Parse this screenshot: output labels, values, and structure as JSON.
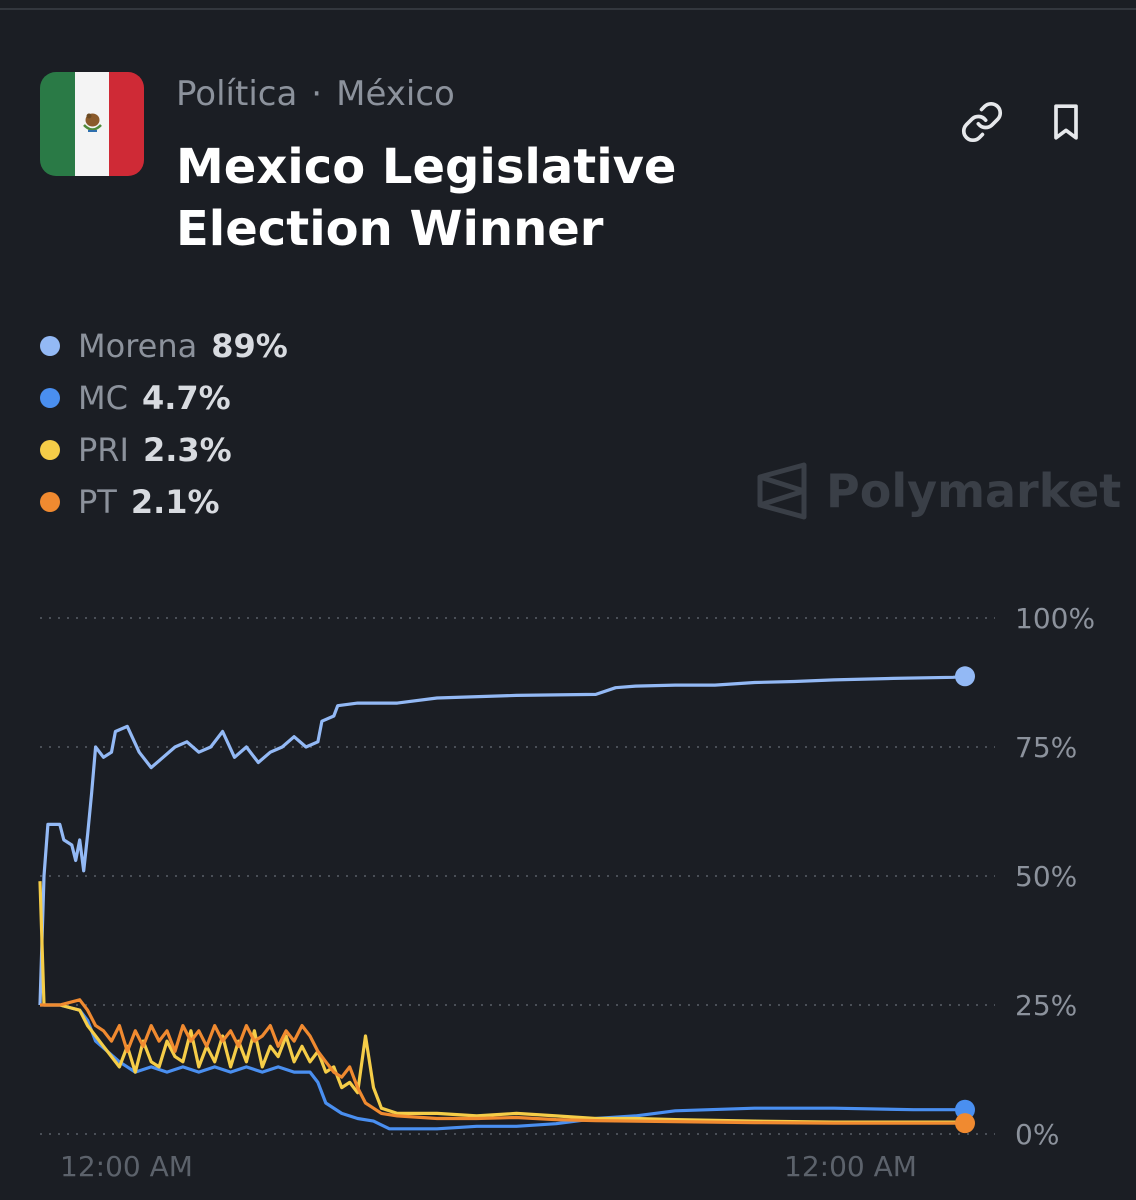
{
  "header": {
    "category": "Política",
    "region": "México",
    "title": "Mexico Legislative Election Winner",
    "link_icon": "link-icon",
    "bookmark_icon": "bookmark-icon"
  },
  "watermark": "Polymarket",
  "colors": {
    "background": "#1b1e24",
    "Morena": "#93b9f5",
    "MC": "#4a8ff0",
    "PRI": "#f5cd48",
    "PT": "#f08a30"
  },
  "legend": [
    {
      "name": "Morena",
      "value": "89%",
      "color": "#93b9f5"
    },
    {
      "name": "MC",
      "value": "4.7%",
      "color": "#4a8ff0"
    },
    {
      "name": "PRI",
      "value": "2.3%",
      "color": "#f5cd48"
    },
    {
      "name": "PT",
      "value": "2.1%",
      "color": "#f08a30"
    }
  ],
  "chart_data": {
    "type": "line",
    "ylim": [
      0,
      100
    ],
    "y_ticks": [
      "100%",
      "75%",
      "50%",
      "25%",
      "0%"
    ],
    "x_tick_labels": [
      "12:00 AM",
      "12:00 AM"
    ],
    "grid": "dotted horizontal",
    "series": [
      {
        "name": "Morena",
        "color": "#93b9f5",
        "points": [
          [
            0,
            25
          ],
          [
            1,
            50
          ],
          [
            2,
            60
          ],
          [
            5,
            60
          ],
          [
            6,
            57
          ],
          [
            8,
            56
          ],
          [
            9,
            53
          ],
          [
            10,
            57
          ],
          [
            11,
            51
          ],
          [
            12,
            58
          ],
          [
            13,
            66
          ],
          [
            14,
            75
          ],
          [
            16,
            73
          ],
          [
            18,
            74
          ],
          [
            19,
            78
          ],
          [
            22,
            79
          ],
          [
            25,
            74
          ],
          [
            28,
            71
          ],
          [
            31,
            73
          ],
          [
            34,
            75
          ],
          [
            37,
            76
          ],
          [
            40,
            74
          ],
          [
            43,
            75
          ],
          [
            46,
            78
          ],
          [
            49,
            73
          ],
          [
            52,
            75
          ],
          [
            55,
            72
          ],
          [
            58,
            74
          ],
          [
            61,
            75
          ],
          [
            64,
            77
          ],
          [
            67,
            75
          ],
          [
            70,
            76
          ],
          [
            71,
            80
          ],
          [
            74,
            81
          ],
          [
            75,
            83
          ],
          [
            80,
            83.5
          ],
          [
            90,
            83.5
          ],
          [
            100,
            84.5
          ],
          [
            120,
            85
          ],
          [
            140,
            85.2
          ],
          [
            145,
            86.5
          ],
          [
            150,
            86.8
          ],
          [
            160,
            87
          ],
          [
            170,
            87
          ],
          [
            180,
            87.5
          ],
          [
            190,
            87.7
          ],
          [
            200,
            88
          ],
          [
            215,
            88.3
          ],
          [
            230,
            88.5
          ],
          [
            233,
            88.7
          ]
        ]
      },
      {
        "name": "MC",
        "color": "#4a8ff0",
        "points": [
          [
            0,
            25
          ],
          [
            5,
            25
          ],
          [
            10,
            24
          ],
          [
            12,
            22
          ],
          [
            14,
            18
          ],
          [
            17,
            16
          ],
          [
            20,
            14
          ],
          [
            24,
            12
          ],
          [
            28,
            13
          ],
          [
            32,
            12
          ],
          [
            36,
            13
          ],
          [
            40,
            12
          ],
          [
            44,
            13
          ],
          [
            48,
            12
          ],
          [
            52,
            13
          ],
          [
            56,
            12
          ],
          [
            60,
            13
          ],
          [
            64,
            12
          ],
          [
            68,
            12
          ],
          [
            70,
            10
          ],
          [
            72,
            6
          ],
          [
            76,
            4
          ],
          [
            80,
            3
          ],
          [
            84,
            2.5
          ],
          [
            88,
            1
          ],
          [
            100,
            1
          ],
          [
            110,
            1.5
          ],
          [
            120,
            1.5
          ],
          [
            130,
            2
          ],
          [
            140,
            3
          ],
          [
            150,
            3.5
          ],
          [
            160,
            4.5
          ],
          [
            180,
            5
          ],
          [
            200,
            5
          ],
          [
            220,
            4.7
          ],
          [
            233,
            4.7
          ]
        ]
      },
      {
        "name": "PRI",
        "color": "#f5cd48",
        "points": [
          [
            0,
            49
          ],
          [
            1,
            25
          ],
          [
            5,
            25
          ],
          [
            10,
            24
          ],
          [
            12,
            21
          ],
          [
            14,
            19
          ],
          [
            16,
            17
          ],
          [
            18,
            15
          ],
          [
            20,
            13
          ],
          [
            22,
            17
          ],
          [
            24,
            12
          ],
          [
            26,
            18
          ],
          [
            28,
            14
          ],
          [
            30,
            13
          ],
          [
            32,
            18
          ],
          [
            34,
            15
          ],
          [
            36,
            14
          ],
          [
            38,
            20
          ],
          [
            40,
            13
          ],
          [
            42,
            17
          ],
          [
            44,
            14
          ],
          [
            46,
            19
          ],
          [
            48,
            13
          ],
          [
            50,
            18
          ],
          [
            52,
            14
          ],
          [
            54,
            20
          ],
          [
            56,
            13
          ],
          [
            58,
            17
          ],
          [
            60,
            15
          ],
          [
            62,
            19
          ],
          [
            64,
            14
          ],
          [
            66,
            17
          ],
          [
            68,
            14
          ],
          [
            70,
            16
          ],
          [
            72,
            12
          ],
          [
            74,
            13
          ],
          [
            76,
            9
          ],
          [
            78,
            10
          ],
          [
            80,
            8
          ],
          [
            82,
            19
          ],
          [
            84,
            9
          ],
          [
            86,
            5
          ],
          [
            90,
            4
          ],
          [
            100,
            4
          ],
          [
            110,
            3.5
          ],
          [
            120,
            4
          ],
          [
            130,
            3.5
          ],
          [
            140,
            3
          ],
          [
            150,
            3
          ],
          [
            160,
            2.8
          ],
          [
            180,
            2.5
          ],
          [
            200,
            2.3
          ],
          [
            220,
            2.3
          ],
          [
            233,
            2.3
          ]
        ]
      },
      {
        "name": "PT",
        "color": "#f08a30",
        "points": [
          [
            0,
            25
          ],
          [
            5,
            25
          ],
          [
            10,
            26
          ],
          [
            12,
            24
          ],
          [
            14,
            21
          ],
          [
            16,
            20
          ],
          [
            18,
            18
          ],
          [
            20,
            21
          ],
          [
            22,
            16
          ],
          [
            24,
            20
          ],
          [
            26,
            17
          ],
          [
            28,
            21
          ],
          [
            30,
            18
          ],
          [
            32,
            20
          ],
          [
            34,
            16
          ],
          [
            36,
            21
          ],
          [
            38,
            18
          ],
          [
            40,
            20
          ],
          [
            42,
            17
          ],
          [
            44,
            21
          ],
          [
            46,
            18
          ],
          [
            48,
            20
          ],
          [
            50,
            17
          ],
          [
            52,
            21
          ],
          [
            54,
            18
          ],
          [
            56,
            19
          ],
          [
            58,
            21
          ],
          [
            60,
            17
          ],
          [
            62,
            20
          ],
          [
            64,
            18
          ],
          [
            66,
            21
          ],
          [
            68,
            19
          ],
          [
            70,
            16
          ],
          [
            72,
            14
          ],
          [
            74,
            12
          ],
          [
            76,
            11
          ],
          [
            78,
            13
          ],
          [
            80,
            9
          ],
          [
            82,
            6
          ],
          [
            84,
            5
          ],
          [
            86,
            4
          ],
          [
            90,
            3.5
          ],
          [
            100,
            3
          ],
          [
            110,
            3
          ],
          [
            120,
            3.2
          ],
          [
            130,
            2.8
          ],
          [
            140,
            2.6
          ],
          [
            150,
            2.5
          ],
          [
            160,
            2.4
          ],
          [
            180,
            2.2
          ],
          [
            200,
            2.1
          ],
          [
            220,
            2.1
          ],
          [
            233,
            2.1
          ]
        ]
      }
    ]
  }
}
